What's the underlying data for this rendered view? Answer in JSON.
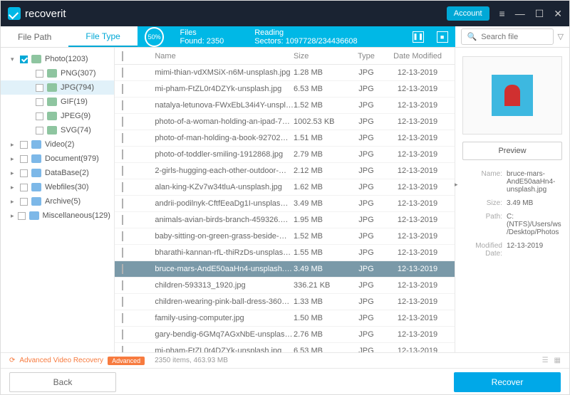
{
  "app": {
    "name": "recoverit",
    "account_label": "Account"
  },
  "colors": {
    "accent": "#00a8e6",
    "titlebar": "#1a2332",
    "row_selected": "#7a99a8",
    "advanced": "#f77b3f"
  },
  "tabs": {
    "file_path": "File Path",
    "file_type": "File Type",
    "active": "file_type"
  },
  "scan": {
    "percent": "50%",
    "files_found_label": "Files Found:",
    "files_found": "2350",
    "reading_label": "Reading Sectors:",
    "reading": "1097728/234436608"
  },
  "search": {
    "placeholder": "Search file"
  },
  "tree": [
    {
      "level": 1,
      "expander": "▾",
      "label": "Photo(1203)",
      "checked": true,
      "icon": "img"
    },
    {
      "level": 2,
      "label": "PNG(307)",
      "icon": "img"
    },
    {
      "level": 2,
      "label": "JPG(794)",
      "selected": true,
      "icon": "img"
    },
    {
      "level": 2,
      "label": "GIF(19)",
      "icon": "img"
    },
    {
      "level": 2,
      "label": "JPEG(9)",
      "icon": "img"
    },
    {
      "level": 2,
      "label": "SVG(74)",
      "icon": "img"
    },
    {
      "level": 1,
      "expander": "▸",
      "label": "Video(2)"
    },
    {
      "level": 1,
      "expander": "▸",
      "label": "Document(979)"
    },
    {
      "level": 1,
      "expander": "▸",
      "label": "DataBase(2)"
    },
    {
      "level": 1,
      "expander": "▸",
      "label": "Webfiles(30)"
    },
    {
      "level": 1,
      "expander": "▸",
      "label": "Archive(5)"
    },
    {
      "level": 1,
      "expander": "▸",
      "label": "Miscellaneous(129)"
    }
  ],
  "columns": {
    "name": "Name",
    "size": "Size",
    "type": "Type",
    "date": "Date Modified"
  },
  "files": [
    {
      "name": "mimi-thian-vdXMSiX-n6M-unsplash.jpg",
      "size": "1.28  MB",
      "type": "JPG",
      "date": "12-13-2019"
    },
    {
      "name": "mi-pham-FtZL0r4DZYk-unsplash.jpg",
      "size": "6.53  MB",
      "type": "JPG",
      "date": "12-13-2019"
    },
    {
      "name": "natalya-letunova-FWxEbL34i4Y-unspl…",
      "size": "1.52  MB",
      "type": "JPG",
      "date": "12-13-2019"
    },
    {
      "name": "photo-of-a-woman-holding-an-ipad-7…",
      "size": "1002.53  KB",
      "type": "JPG",
      "date": "12-13-2019"
    },
    {
      "name": "photo-of-man-holding-a-book-92702…",
      "size": "1.51  MB",
      "type": "JPG",
      "date": "12-13-2019"
    },
    {
      "name": "photo-of-toddler-smiling-1912868.jpg",
      "size": "2.79  MB",
      "type": "JPG",
      "date": "12-13-2019"
    },
    {
      "name": "2-girls-hugging-each-other-outdoor-…",
      "size": "2.12  MB",
      "type": "JPG",
      "date": "12-13-2019"
    },
    {
      "name": "alan-king-KZv7w34tluA-unsplash.jpg",
      "size": "1.62  MB",
      "type": "JPG",
      "date": "12-13-2019"
    },
    {
      "name": "andrii-podilnyk-CftfEeaDg1I-unsplas…",
      "size": "3.49  MB",
      "type": "JPG",
      "date": "12-13-2019"
    },
    {
      "name": "animals-avian-birds-branch-459326.…",
      "size": "1.95  MB",
      "type": "JPG",
      "date": "12-13-2019"
    },
    {
      "name": "baby-sitting-on-green-grass-beside-…",
      "size": "1.52  MB",
      "type": "JPG",
      "date": "12-13-2019"
    },
    {
      "name": "bharathi-kannan-rfL-thiRzDs-unsplas…",
      "size": "1.55  MB",
      "type": "JPG",
      "date": "12-13-2019"
    },
    {
      "name": "bruce-mars-AndE50aaHn4-unsplash.…",
      "size": "3.49  MB",
      "type": "JPG",
      "date": "12-13-2019",
      "selected": true
    },
    {
      "name": "children-593313_1920.jpg",
      "size": "336.21  KB",
      "type": "JPG",
      "date": "12-13-2019"
    },
    {
      "name": "children-wearing-pink-ball-dress-360…",
      "size": "1.33  MB",
      "type": "JPG",
      "date": "12-13-2019"
    },
    {
      "name": "family-using-computer.jpg",
      "size": "1.50  MB",
      "type": "JPG",
      "date": "12-13-2019"
    },
    {
      "name": "gary-bendig-6GMq7AGxNbE-unsplas…",
      "size": "2.76  MB",
      "type": "JPG",
      "date": "12-13-2019"
    },
    {
      "name": "mi-pham-FtZL0r4DZYk-unsplash.jpg",
      "size": "6.53  MB",
      "type": "JPG",
      "date": "12-13-2019"
    }
  ],
  "preview": {
    "button": "Preview",
    "name_label": "Name:",
    "name": "bruce-mars-AndE50aaHn4-unsplash.jpg",
    "size_label": "Size:",
    "size": "3.49  MB",
    "path_label": "Path:",
    "path": "C:(NTFS)/Users/ws/Desktop/Photos",
    "date_label": "Modified Date:",
    "date": "12-13-2019"
  },
  "status": {
    "advanced_label": "Advanced Video Recovery",
    "advanced_badge": "Advanced",
    "summary": "2350 items, 463.93  MB"
  },
  "footer": {
    "back": "Back",
    "recover": "Recover"
  }
}
